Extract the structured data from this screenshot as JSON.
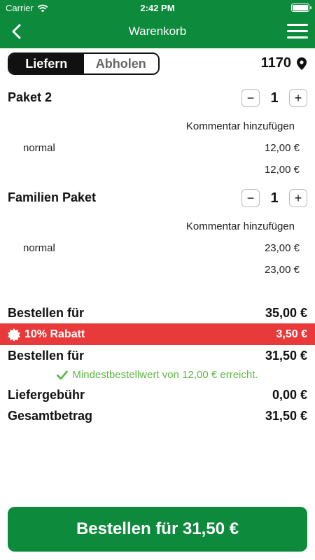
{
  "statusbar": {
    "carrier": "Carrier",
    "time": "2:42 PM"
  },
  "navbar": {
    "title": "Warenkorb"
  },
  "mode": {
    "deliver": "Liefern",
    "pickup": "Abholen",
    "location": "1170"
  },
  "items": [
    {
      "name": "Paket 2",
      "qty": "1",
      "comment": "Kommentar hinzufügen",
      "variant": "normal",
      "variant_price": "12,00 €",
      "total": "12,00 €"
    },
    {
      "name": "Familien Paket",
      "qty": "1",
      "comment": "Kommentar hinzufügen",
      "variant": "normal",
      "variant_price": "23,00 €",
      "total": "23,00 €"
    }
  ],
  "stepper": {
    "minus": "−",
    "plus": "+"
  },
  "summary": {
    "subtotal_label": "Bestellen für",
    "subtotal_value": "35,00 €",
    "discount_label": "10% Rabatt",
    "discount_value": "3,50 €",
    "after_label": "Bestellen für",
    "after_value": "31,50 €",
    "min_order_note": "Mindestbestellwert von 12,00 € erreicht.",
    "delivery_label": "Liefergebühr",
    "delivery_value": "0,00 €",
    "total_label": "Gesamtbetrag",
    "total_value": "31,50 €"
  },
  "order_button": "Bestellen für 31,50 €",
  "colors": {
    "brand": "#0d8a3c",
    "discount": "#e83a3a",
    "success": "#5fb845"
  }
}
